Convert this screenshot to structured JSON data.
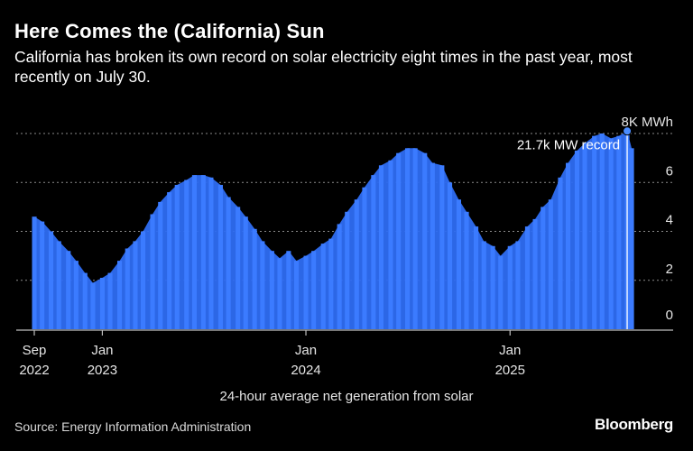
{
  "title": "Here Comes the (California) Sun",
  "subtitle": "California has broken its own record on solar electricity eight times in the past year, most recently on July 30.",
  "x_caption": "24-hour average net generation from solar",
  "source": "Source: Energy Information Administration",
  "brand": "Bloomberg",
  "colors": {
    "bar": "#2e6df2",
    "background": "#000000",
    "grid": "#8a8a8a",
    "text": "#ffffff",
    "marker": "#4a8cff"
  },
  "chart_data": {
    "type": "area",
    "title": "Here Comes the (California) Sun",
    "xlabel": "24-hour average net generation from solar",
    "ylabel": "",
    "unit": "MWh",
    "ylim": [
      0,
      8
    ],
    "yticks": [
      {
        "value": 0,
        "label": "0"
      },
      {
        "value": 2,
        "label": "2"
      },
      {
        "value": 4,
        "label": "4"
      },
      {
        "value": 6,
        "label": "6"
      },
      {
        "value": 8,
        "label": "8K MWh"
      }
    ],
    "xticks": [
      {
        "date": "2022-09-01",
        "line1": "Sep",
        "line2": "2022"
      },
      {
        "date": "2023-01-01",
        "line1": "Jan",
        "line2": "2023"
      },
      {
        "date": "2024-01-01",
        "line1": "Jan",
        "line2": "2024"
      },
      {
        "date": "2025-01-01",
        "line1": "Jan",
        "line2": "2025"
      }
    ],
    "x_range": [
      "2022-09-01",
      "2025-08-07"
    ],
    "grid": true,
    "series": [
      {
        "name": "",
        "points": [
          {
            "date": "2022-09-01",
            "value": 4.6
          },
          {
            "date": "2022-09-15",
            "value": 4.4
          },
          {
            "date": "2022-10-01",
            "value": 4.0
          },
          {
            "date": "2022-10-15",
            "value": 3.6
          },
          {
            "date": "2022-11-01",
            "value": 3.2
          },
          {
            "date": "2022-11-15",
            "value": 2.8
          },
          {
            "date": "2022-12-01",
            "value": 2.3
          },
          {
            "date": "2022-12-15",
            "value": 1.9
          },
          {
            "date": "2023-01-01",
            "value": 2.1
          },
          {
            "date": "2023-01-15",
            "value": 2.3
          },
          {
            "date": "2023-02-01",
            "value": 2.8
          },
          {
            "date": "2023-02-15",
            "value": 3.3
          },
          {
            "date": "2023-03-01",
            "value": 3.6
          },
          {
            "date": "2023-03-15",
            "value": 4.0
          },
          {
            "date": "2023-04-01",
            "value": 4.7
          },
          {
            "date": "2023-04-15",
            "value": 5.2
          },
          {
            "date": "2023-05-01",
            "value": 5.6
          },
          {
            "date": "2023-05-15",
            "value": 5.9
          },
          {
            "date": "2023-06-01",
            "value": 6.1
          },
          {
            "date": "2023-06-15",
            "value": 6.3
          },
          {
            "date": "2023-07-01",
            "value": 6.3
          },
          {
            "date": "2023-07-15",
            "value": 6.2
          },
          {
            "date": "2023-08-01",
            "value": 5.9
          },
          {
            "date": "2023-08-15",
            "value": 5.4
          },
          {
            "date": "2023-09-01",
            "value": 5.0
          },
          {
            "date": "2023-09-15",
            "value": 4.6
          },
          {
            "date": "2023-10-01",
            "value": 4.1
          },
          {
            "date": "2023-10-15",
            "value": 3.6
          },
          {
            "date": "2023-11-01",
            "value": 3.2
          },
          {
            "date": "2023-11-15",
            "value": 2.9
          },
          {
            "date": "2023-12-01",
            "value": 3.2
          },
          {
            "date": "2023-12-15",
            "value": 2.8
          },
          {
            "date": "2024-01-01",
            "value": 3.0
          },
          {
            "date": "2024-01-15",
            "value": 3.2
          },
          {
            "date": "2024-02-01",
            "value": 3.5
          },
          {
            "date": "2024-02-15",
            "value": 3.7
          },
          {
            "date": "2024-03-01",
            "value": 4.3
          },
          {
            "date": "2024-03-15",
            "value": 4.8
          },
          {
            "date": "2024-04-01",
            "value": 5.3
          },
          {
            "date": "2024-04-15",
            "value": 5.8
          },
          {
            "date": "2024-05-01",
            "value": 6.3
          },
          {
            "date": "2024-05-15",
            "value": 6.7
          },
          {
            "date": "2024-06-01",
            "value": 6.9
          },
          {
            "date": "2024-06-15",
            "value": 7.2
          },
          {
            "date": "2024-07-01",
            "value": 7.4
          },
          {
            "date": "2024-07-15",
            "value": 7.4
          },
          {
            "date": "2024-08-01",
            "value": 7.2
          },
          {
            "date": "2024-08-15",
            "value": 6.8
          },
          {
            "date": "2024-09-01",
            "value": 6.7
          },
          {
            "date": "2024-09-15",
            "value": 6.0
          },
          {
            "date": "2024-10-01",
            "value": 5.3
          },
          {
            "date": "2024-10-15",
            "value": 4.8
          },
          {
            "date": "2024-11-01",
            "value": 4.2
          },
          {
            "date": "2024-11-15",
            "value": 3.6
          },
          {
            "date": "2024-12-01",
            "value": 3.4
          },
          {
            "date": "2024-12-15",
            "value": 3.0
          },
          {
            "date": "2025-01-01",
            "value": 3.4
          },
          {
            "date": "2025-01-15",
            "value": 3.6
          },
          {
            "date": "2025-02-01",
            "value": 4.2
          },
          {
            "date": "2025-02-15",
            "value": 4.5
          },
          {
            "date": "2025-03-01",
            "value": 5.0
          },
          {
            "date": "2025-03-15",
            "value": 5.3
          },
          {
            "date": "2025-04-01",
            "value": 6.2
          },
          {
            "date": "2025-04-15",
            "value": 6.8
          },
          {
            "date": "2025-05-01",
            "value": 7.3
          },
          {
            "date": "2025-05-15",
            "value": 7.6
          },
          {
            "date": "2025-06-01",
            "value": 7.9
          },
          {
            "date": "2025-06-15",
            "value": 8.0
          },
          {
            "date": "2025-07-01",
            "value": 7.8
          },
          {
            "date": "2025-07-15",
            "value": 7.9
          },
          {
            "date": "2025-07-30",
            "value": 8.1
          },
          {
            "date": "2025-08-07",
            "value": 7.4
          }
        ]
      }
    ],
    "annotations": [
      {
        "date": "2025-07-30",
        "value": 8.1,
        "label": "21.7k MW record"
      }
    ]
  }
}
